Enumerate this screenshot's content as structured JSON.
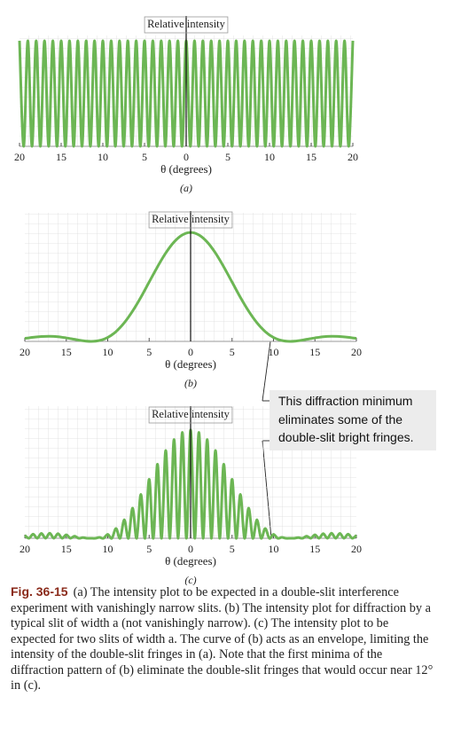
{
  "chart_data": [
    {
      "type": "line",
      "y_label": "Relative intensity",
      "x_label": "θ (degrees)",
      "panel_label": "(a)",
      "xlim": [
        -20,
        20
      ],
      "ylim": [
        0,
        1.05
      ],
      "xticks": [
        {
          "value": -20,
          "label": "20"
        },
        {
          "value": -15,
          "label": "15"
        },
        {
          "value": -10,
          "label": "10"
        },
        {
          "value": -5,
          "label": "5"
        },
        0,
        5,
        10,
        15,
        20
      ],
      "grid": true,
      "x": [
        -20,
        -19.5,
        -19,
        -18.5,
        -18,
        -17.5,
        -17,
        -16.5,
        -16,
        -15.5,
        -15,
        -14.5,
        -14,
        -13.5,
        -13,
        -12.5,
        -12,
        -11.5,
        -11,
        -10.5,
        -10,
        -9.5,
        -9,
        -8.5,
        -8,
        -7.5,
        -7,
        -6.5,
        -6,
        -5.5,
        -5,
        -4.5,
        -4,
        -3.5,
        -3,
        -2.5,
        -2,
        -1.5,
        -1,
        -0.5,
        0,
        0.5,
        1,
        1.5,
        2,
        2.5,
        3,
        3.5,
        4,
        4.5,
        5,
        5.5,
        6,
        6.5,
        7,
        7.5,
        8,
        8.5,
        9,
        9.5,
        10,
        10.5,
        11,
        11.5,
        12,
        12.5,
        13,
        13.5,
        14,
        14.5,
        15,
        15.5,
        16,
        16.5,
        17,
        17.5,
        18,
        18.5,
        19,
        19.5,
        20
      ],
      "series": [
        {
          "color": "#6cb654",
          "values": [
            1,
            0,
            1,
            0,
            1,
            0,
            1,
            0,
            1,
            0,
            1,
            0,
            1,
            0,
            1,
            0,
            1,
            0,
            1,
            0,
            1,
            0,
            1,
            0,
            1,
            0,
            1,
            0,
            1,
            0,
            1,
            0,
            1,
            0,
            1,
            0,
            1,
            0,
            1,
            0,
            1,
            0,
            1,
            0,
            1,
            0,
            1,
            0,
            1,
            0,
            1,
            0,
            1,
            0,
            1,
            0,
            1,
            0,
            1,
            0,
            1,
            0,
            1,
            0,
            1,
            0,
            1,
            0,
            1,
            0,
            1,
            0,
            1,
            0,
            1,
            0,
            1,
            0,
            1,
            0,
            1
          ]
        }
      ]
    },
    {
      "type": "line",
      "y_label": "Relative intensity",
      "x_label": "θ (degrees)",
      "panel_label": "(b)",
      "xlim": [
        -20,
        20
      ],
      "ylim": [
        0,
        1.18
      ],
      "xticks": [
        {
          "value": -20,
          "label": "20"
        },
        {
          "value": -15,
          "label": "15"
        },
        {
          "value": -10,
          "label": "10"
        },
        {
          "value": -5,
          "label": "5"
        },
        0,
        5,
        10,
        15,
        20
      ],
      "grid": true,
      "x": [
        -20,
        -19,
        -18,
        -17,
        -16,
        -15,
        -14,
        -13,
        -12,
        -11,
        -10,
        -9,
        -8,
        -7,
        -6,
        -5,
        -4,
        -3,
        -2,
        -1,
        0,
        1,
        2,
        3,
        4,
        5,
        6,
        7,
        8,
        9,
        10,
        11,
        12,
        13,
        14,
        15,
        16,
        17,
        18,
        19,
        20
      ],
      "series": [
        {
          "color": "#6cb654",
          "values": [
            0.027,
            0.038,
            0.045,
            0.047,
            0.043,
            0.032,
            0.019,
            0.006,
            0,
            0.008,
            0.036,
            0.09,
            0.171,
            0.278,
            0.405,
            0.545,
            0.684,
            0.811,
            0.912,
            0.977,
            1,
            0.977,
            0.912,
            0.811,
            0.684,
            0.545,
            0.405,
            0.278,
            0.171,
            0.09,
            0.036,
            0.008,
            0,
            0.006,
            0.019,
            0.032,
            0.043,
            0.047,
            0.045,
            0.038,
            0.027
          ]
        }
      ]
    },
    {
      "type": "line",
      "y_label": "Relative intensity",
      "x_label": "θ (degrees)",
      "panel_label": "(c)",
      "xlim": [
        -20,
        20
      ],
      "ylim": [
        0,
        1.22
      ],
      "xticks": [
        {
          "value": -20,
          "label": "20"
        },
        {
          "value": -15,
          "label": "15"
        },
        {
          "value": -10,
          "label": "10"
        },
        {
          "value": -5,
          "label": "5"
        },
        0,
        5,
        10,
        15,
        20
      ],
      "grid": true,
      "x": [
        -20,
        -19.5,
        -19,
        -18.5,
        -18,
        -17.5,
        -17,
        -16.5,
        -16,
        -15.5,
        -15,
        -14.5,
        -14,
        -13.5,
        -13,
        -12.5,
        -12,
        -11.5,
        -11,
        -10.5,
        -10,
        -9.5,
        -9,
        -8.5,
        -8,
        -7.5,
        -7,
        -6.5,
        -6,
        -5.5,
        -5,
        -4.5,
        -4,
        -3.5,
        -3,
        -2.5,
        -2,
        -1.5,
        -1,
        -0.5,
        0,
        0.5,
        1,
        1.5,
        2,
        2.5,
        3,
        3.5,
        4,
        4.5,
        5,
        5.5,
        6,
        6.5,
        7,
        7.5,
        8,
        8.5,
        9,
        9.5,
        10,
        10.5,
        11,
        11.5,
        12,
        12.5,
        13,
        13.5,
        14,
        14.5,
        15,
        15.5,
        16,
        16.5,
        17,
        17.5,
        18,
        18.5,
        19,
        19.5,
        20
      ],
      "series": [
        {
          "color": "#6cb654",
          "values": [
            0.027,
            0,
            0.038,
            0,
            0.045,
            0,
            0.047,
            0,
            0.043,
            0,
            0.032,
            0,
            0.019,
            0,
            0.006,
            0,
            0,
            0,
            0.008,
            0,
            0.036,
            0,
            0.09,
            0,
            0.171,
            0,
            0.278,
            0,
            0.405,
            0,
            0.545,
            0,
            0.684,
            0,
            0.811,
            0,
            0.912,
            0,
            0.977,
            0,
            1,
            0,
            0.977,
            0,
            0.912,
            0,
            0.811,
            0,
            0.684,
            0,
            0.545,
            0,
            0.405,
            0,
            0.278,
            0,
            0.171,
            0,
            0.09,
            0,
            0.036,
            0,
            0.008,
            0,
            0,
            0,
            0.006,
            0,
            0.019,
            0,
            0.032,
            0,
            0.043,
            0,
            0.047,
            0,
            0.045,
            0,
            0.038,
            0,
            0.027
          ]
        }
      ]
    }
  ],
  "annotation": [
    "This diffraction minimum",
    "eliminates some of the",
    "double-slit bright fringes."
  ],
  "caption": {
    "label": "Fig. 36-15",
    "text": "(a) The intensity plot to be expected in a double-slit interference experiment with vanishingly narrow slits. (b) The intensity plot for diffraction by a typical slit of width a (not vanishingly narrow). (c) The intensity plot to be expected for two slits of width a. The curve of (b) acts as an envelope, limiting the intensity of the double-slit fringes in (a). Note that the first minima of the diffraction pattern of (b) eliminate the double-slit fringes that would occur near 12° in (c)."
  }
}
